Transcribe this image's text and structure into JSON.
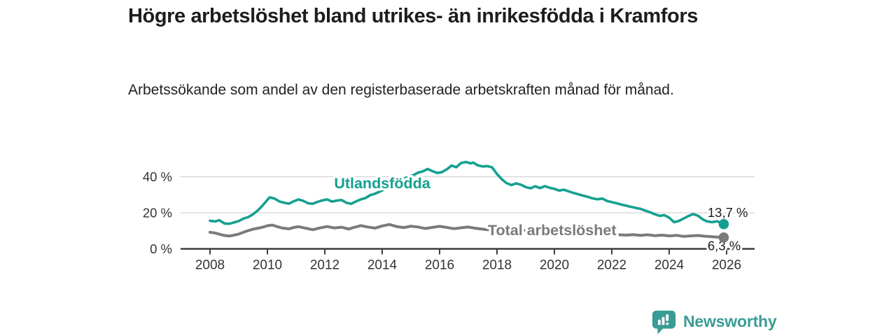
{
  "chart_data": {
    "type": "line",
    "title": "Högre arbetslöshet bland utrikes- än inrikesfödda i Kramfors",
    "subtitle": "Arbetssökande som andel av den registerbaserade arbetskraften månad för månad.",
    "x_axis": {
      "ticks": [
        2008,
        2010,
        2012,
        2014,
        2016,
        2018,
        2020,
        2022,
        2024,
        2026
      ],
      "tick_labels": [
        "2008",
        "2010",
        "2012",
        "2014",
        "2016",
        "2018",
        "2020",
        "2022",
        "2024",
        "2026"
      ],
      "min": 2008,
      "max": 2026.8
    },
    "y_axis": {
      "ticks": [
        0,
        20,
        40
      ],
      "tick_labels": [
        "0 %",
        "20 %",
        "40 %"
      ],
      "min": 0,
      "max": 52
    },
    "grid": true,
    "grid_color": "#d4d4d4",
    "axis_color": "#3d3d3d",
    "axis_text_color": "#333333",
    "legend_position": "inline-labels",
    "series": [
      {
        "name": "Utlandsfödda",
        "slug": "utlandsfodda",
        "color": "#14a090",
        "stroke_width": 3.6,
        "label": {
          "x": 2014.0,
          "y": 36.6
        },
        "end_label": "13,7 %",
        "end_value": 13.7,
        "end_label_side": "above",
        "points": [
          [
            2008.0,
            15.6
          ],
          [
            2008.17,
            15.2
          ],
          [
            2008.33,
            15.9
          ],
          [
            2008.5,
            14.1
          ],
          [
            2008.67,
            13.9
          ],
          [
            2008.83,
            14.6
          ],
          [
            2009.0,
            15.4
          ],
          [
            2009.17,
            16.8
          ],
          [
            2009.33,
            17.6
          ],
          [
            2009.5,
            19.2
          ],
          [
            2009.67,
            21.4
          ],
          [
            2009.83,
            24.0
          ],
          [
            2010.0,
            27.2
          ],
          [
            2010.08,
            28.6
          ],
          [
            2010.25,
            27.9
          ],
          [
            2010.42,
            26.3
          ],
          [
            2010.58,
            25.6
          ],
          [
            2010.75,
            25.1
          ],
          [
            2010.92,
            26.4
          ],
          [
            2011.08,
            27.4
          ],
          [
            2011.25,
            26.6
          ],
          [
            2011.42,
            25.3
          ],
          [
            2011.58,
            25.0
          ],
          [
            2011.75,
            26.1
          ],
          [
            2011.92,
            26.9
          ],
          [
            2012.08,
            27.4
          ],
          [
            2012.25,
            26.2
          ],
          [
            2012.42,
            26.8
          ],
          [
            2012.58,
            27.1
          ],
          [
            2012.75,
            25.6
          ],
          [
            2012.92,
            25.0
          ],
          [
            2013.08,
            26.3
          ],
          [
            2013.25,
            27.4
          ],
          [
            2013.42,
            28.2
          ],
          [
            2013.58,
            29.8
          ],
          [
            2013.75,
            30.6
          ],
          [
            2013.92,
            31.8
          ],
          [
            2014.08,
            33.0
          ],
          [
            2014.25,
            34.5
          ],
          [
            2014.42,
            35.8
          ],
          [
            2014.58,
            37.4
          ],
          [
            2014.75,
            38.8
          ],
          [
            2014.92,
            40.0
          ],
          [
            2015.08,
            40.8
          ],
          [
            2015.25,
            42.3
          ],
          [
            2015.42,
            43.0
          ],
          [
            2015.58,
            44.3
          ],
          [
            2015.75,
            43.1
          ],
          [
            2015.92,
            42.1
          ],
          [
            2016.08,
            42.6
          ],
          [
            2016.25,
            44.1
          ],
          [
            2016.42,
            46.2
          ],
          [
            2016.58,
            45.3
          ],
          [
            2016.75,
            47.6
          ],
          [
            2016.92,
            48.2
          ],
          [
            2017.08,
            47.4
          ],
          [
            2017.17,
            47.9
          ],
          [
            2017.33,
            46.3
          ],
          [
            2017.5,
            45.7
          ],
          [
            2017.67,
            45.9
          ],
          [
            2017.83,
            45.2
          ],
          [
            2018.0,
            41.5
          ],
          [
            2018.17,
            38.6
          ],
          [
            2018.33,
            36.5
          ],
          [
            2018.5,
            35.4
          ],
          [
            2018.67,
            36.3
          ],
          [
            2018.83,
            35.6
          ],
          [
            2019.0,
            34.3
          ],
          [
            2019.17,
            33.6
          ],
          [
            2019.33,
            34.7
          ],
          [
            2019.5,
            33.7
          ],
          [
            2019.67,
            34.8
          ],
          [
            2019.83,
            33.9
          ],
          [
            2020.0,
            33.3
          ],
          [
            2020.17,
            32.3
          ],
          [
            2020.33,
            32.8
          ],
          [
            2020.5,
            31.9
          ],
          [
            2020.67,
            31.0
          ],
          [
            2020.83,
            30.3
          ],
          [
            2021.0,
            29.5
          ],
          [
            2021.17,
            28.8
          ],
          [
            2021.33,
            28.0
          ],
          [
            2021.5,
            27.5
          ],
          [
            2021.67,
            27.9
          ],
          [
            2021.83,
            26.6
          ],
          [
            2022.0,
            25.9
          ],
          [
            2022.17,
            25.3
          ],
          [
            2022.33,
            24.6
          ],
          [
            2022.5,
            24.0
          ],
          [
            2022.67,
            23.3
          ],
          [
            2022.83,
            22.7
          ],
          [
            2023.0,
            22.2
          ],
          [
            2023.17,
            21.2
          ],
          [
            2023.33,
            20.3
          ],
          [
            2023.5,
            19.2
          ],
          [
            2023.67,
            18.3
          ],
          [
            2023.83,
            18.7
          ],
          [
            2024.0,
            17.3
          ],
          [
            2024.17,
            14.8
          ],
          [
            2024.33,
            15.4
          ],
          [
            2024.5,
            16.8
          ],
          [
            2024.67,
            18.2
          ],
          [
            2024.83,
            19.3
          ],
          [
            2025.0,
            18.4
          ],
          [
            2025.17,
            16.3
          ],
          [
            2025.33,
            15.2
          ],
          [
            2025.5,
            14.8
          ],
          [
            2025.67,
            15.3
          ],
          [
            2025.9,
            13.7
          ]
        ]
      },
      {
        "name": "Total arbetslöshet",
        "slug": "total-arbetsloshet",
        "color": "#7a7a7a",
        "stroke_width": 4,
        "label": {
          "x": 2019.92,
          "y": 10.4
        },
        "end_label": "6,3 %",
        "end_value": 6.3,
        "end_label_side": "below",
        "points": [
          [
            2008.0,
            9.2
          ],
          [
            2008.17,
            8.8
          ],
          [
            2008.33,
            8.1
          ],
          [
            2008.5,
            7.4
          ],
          [
            2008.67,
            7.1
          ],
          [
            2008.83,
            7.6
          ],
          [
            2009.0,
            8.2
          ],
          [
            2009.25,
            9.7
          ],
          [
            2009.5,
            10.9
          ],
          [
            2009.75,
            11.7
          ],
          [
            2010.0,
            12.8
          ],
          [
            2010.17,
            13.2
          ],
          [
            2010.33,
            12.4
          ],
          [
            2010.5,
            11.6
          ],
          [
            2010.75,
            11.1
          ],
          [
            2010.92,
            11.9
          ],
          [
            2011.08,
            12.3
          ],
          [
            2011.33,
            11.5
          ],
          [
            2011.58,
            10.6
          ],
          [
            2011.83,
            11.6
          ],
          [
            2012.08,
            12.4
          ],
          [
            2012.33,
            11.6
          ],
          [
            2012.58,
            12.0
          ],
          [
            2012.83,
            11.0
          ],
          [
            2013.0,
            11.8
          ],
          [
            2013.25,
            12.9
          ],
          [
            2013.5,
            12.1
          ],
          [
            2013.75,
            11.5
          ],
          [
            2014.0,
            12.7
          ],
          [
            2014.25,
            13.5
          ],
          [
            2014.5,
            12.4
          ],
          [
            2014.75,
            11.8
          ],
          [
            2015.0,
            12.6
          ],
          [
            2015.25,
            12.1
          ],
          [
            2015.5,
            11.3
          ],
          [
            2015.75,
            11.9
          ],
          [
            2016.0,
            12.5
          ],
          [
            2016.25,
            11.9
          ],
          [
            2016.5,
            11.2
          ],
          [
            2016.75,
            11.7
          ],
          [
            2017.0,
            12.1
          ],
          [
            2017.25,
            11.4
          ],
          [
            2017.5,
            10.9
          ],
          [
            2017.75,
            10.5
          ],
          [
            2018.0,
            10.8
          ],
          [
            2018.33,
            10.1
          ],
          [
            2018.67,
            10.4
          ],
          [
            2019.0,
            10.2
          ],
          [
            2019.33,
            9.7
          ],
          [
            2019.67,
            10.0
          ],
          [
            2020.0,
            9.9
          ],
          [
            2020.33,
            9.5
          ],
          [
            2020.67,
            9.2
          ],
          [
            2021.0,
            9.0
          ],
          [
            2021.33,
            8.6
          ],
          [
            2021.67,
            8.3
          ],
          [
            2022.0,
            8.1
          ],
          [
            2022.25,
            7.8
          ],
          [
            2022.5,
            7.6
          ],
          [
            2022.75,
            7.9
          ],
          [
            2023.0,
            7.5
          ],
          [
            2023.25,
            7.8
          ],
          [
            2023.5,
            7.3
          ],
          [
            2023.75,
            7.6
          ],
          [
            2024.0,
            7.2
          ],
          [
            2024.25,
            7.5
          ],
          [
            2024.5,
            6.9
          ],
          [
            2024.75,
            7.2
          ],
          [
            2025.0,
            7.4
          ],
          [
            2025.25,
            7.0
          ],
          [
            2025.5,
            6.7
          ],
          [
            2025.9,
            6.3
          ]
        ]
      }
    ]
  },
  "footer": {
    "brand": "Newsworthy",
    "brand_color": "#3a9c94"
  }
}
